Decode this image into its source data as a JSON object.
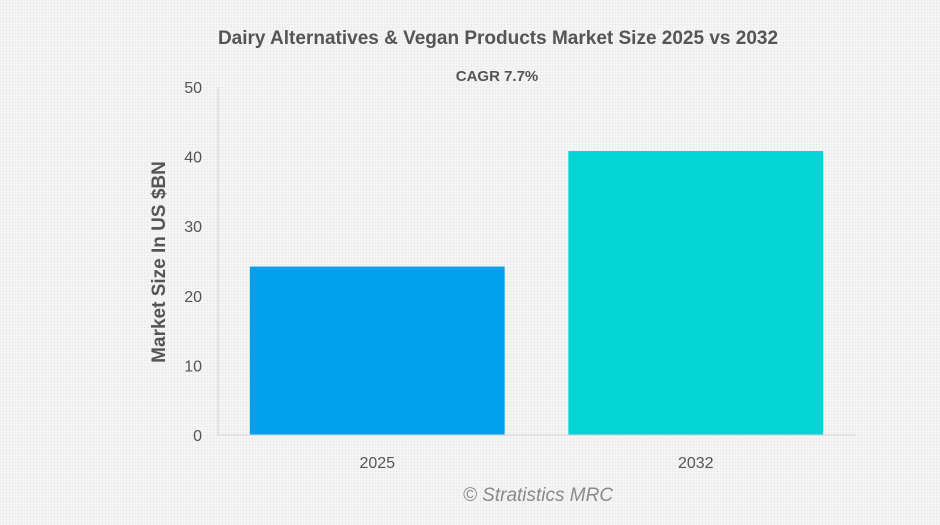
{
  "chart_data": {
    "type": "bar",
    "title": "Dairy Alternatives & Vegan Products Market Size 2025 vs 2032",
    "annotation": "CAGR 7.7%",
    "ylabel": "Market Size In US $BN",
    "xlabel": "",
    "ylim": [
      0,
      50
    ],
    "yticks": [
      0,
      10,
      20,
      30,
      40,
      50
    ],
    "categories": [
      "2025",
      "2032"
    ],
    "values": [
      24.2,
      40.8
    ],
    "bar_colors": [
      "#03a1eb",
      "#04d4d4"
    ],
    "grid": false,
    "legend": "none"
  },
  "watermark": "© Stratistics MRC"
}
